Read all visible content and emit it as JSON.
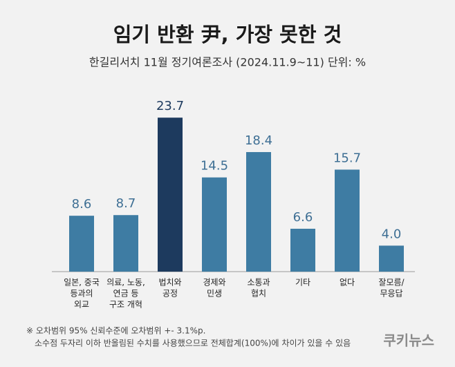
{
  "chart_data": {
    "type": "bar",
    "title": "임기 반환 尹, 가장 못한 것",
    "subtitle": "한길리서치 11월 정기여론조사 (2024.11.9~11) 단위: %",
    "categories": [
      [
        "일본, 중국",
        "등과의",
        "외교"
      ],
      [
        "의료, 노동,",
        "연금 등",
        "구조 개혁"
      ],
      [
        "법치와",
        "공정"
      ],
      [
        "경제와",
        "민생"
      ],
      [
        "소통과",
        "협치"
      ],
      [
        "기타"
      ],
      [
        "없다"
      ],
      [
        "잘모름/",
        "무응답"
      ]
    ],
    "values": [
      8.6,
      8.7,
      23.7,
      14.5,
      18.4,
      6.6,
      15.7,
      4
    ],
    "value_labels": [
      "8.6",
      "8.7",
      "23.7",
      "14.5",
      "18.4",
      "6.6",
      "15.7",
      "4.0"
    ],
    "colors": [
      "#3e7ca3",
      "#3e7ca3",
      "#1d3a5e",
      "#3e7ca3",
      "#3e7ca3",
      "#3e7ca3",
      "#3e7ca3",
      "#3e7ca3"
    ],
    "ylim": [
      0,
      25
    ],
    "notes": [
      "※ 오차범위 95% 신뢰수준에 오차범위 +- 3.1%p.",
      "소수점 두자리 이하 반올림된 수치를 사용했으므로 전체합계(100%)에 차이가 있을 수 있음"
    ],
    "source": "쿠키뉴스"
  }
}
